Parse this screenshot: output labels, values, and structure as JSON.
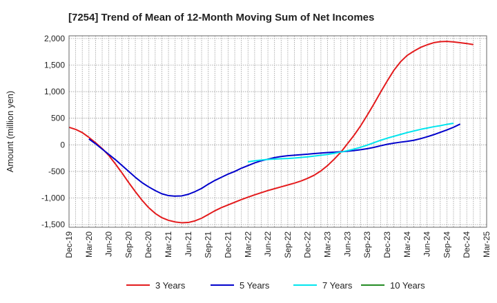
{
  "chart_data": {
    "type": "line",
    "title": "[7254]  Trend of Mean of 12-Month Moving Sum of Net Incomes",
    "ylabel": "Amount (million yen)",
    "xlabel": "",
    "ylim": [
      -1550,
      2050
    ],
    "yticks": [
      2000,
      1500,
      1000,
      500,
      0,
      -500,
      -1000,
      -1500
    ],
    "ytick_labels": [
      "2,000",
      "1,500",
      "1,000",
      "500",
      "0",
      "-500",
      "-1,000",
      "-1,500"
    ],
    "x_start": "Dec-19",
    "x_end": "Mar-25",
    "x_tick_labels": [
      "Dec-19",
      "Mar-20",
      "Jun-20",
      "Sep-20",
      "Dec-20",
      "Mar-21",
      "Jun-21",
      "Sep-21",
      "Dec-21",
      "Mar-22",
      "Jun-22",
      "Sep-22",
      "Dec-22",
      "Mar-23",
      "Jun-23",
      "Sep-23",
      "Dec-23",
      "Mar-24",
      "Jun-24",
      "Sep-24",
      "Dec-24",
      "Mar-25"
    ],
    "grid": true,
    "legend_position": "bottom",
    "series": [
      {
        "name": "3 Years",
        "color": "#e31a1c",
        "start": "Dec-19",
        "values": [
          330,
          290,
          230,
          140,
          40,
          -70,
          -200,
          -360,
          -530,
          -710,
          -880,
          -1040,
          -1180,
          -1290,
          -1370,
          -1420,
          -1450,
          -1465,
          -1460,
          -1430,
          -1380,
          -1310,
          -1240,
          -1180,
          -1130,
          -1080,
          -1030,
          -985,
          -940,
          -900,
          -860,
          -825,
          -790,
          -755,
          -720,
          -680,
          -630,
          -570,
          -490,
          -390,
          -270,
          -140,
          20,
          180,
          360,
          560,
          770,
          990,
          1200,
          1400,
          1560,
          1680,
          1760,
          1830,
          1880,
          1920,
          1940,
          1945,
          1935,
          1920,
          1905,
          1885
        ]
      },
      {
        "name": "5 Years",
        "color": "#0000cc",
        "start": "Mar-20",
        "values": [
          110,
          20,
          -80,
          -180,
          -280,
          -390,
          -500,
          -610,
          -710,
          -790,
          -860,
          -920,
          -955,
          -965,
          -960,
          -930,
          -880,
          -820,
          -740,
          -670,
          -610,
          -550,
          -500,
          -440,
          -390,
          -340,
          -300,
          -270,
          -240,
          -220,
          -205,
          -195,
          -185,
          -175,
          -165,
          -155,
          -145,
          -138,
          -130,
          -120,
          -108,
          -92,
          -72,
          -48,
          -18,
          10,
          32,
          50,
          65,
          85,
          115,
          150,
          190,
          235,
          280,
          330,
          390
        ]
      },
      {
        "name": "7 Years",
        "color": "#00e5ee",
        "start": "Mar-22",
        "values": [
          -320,
          -300,
          -285,
          -275,
          -268,
          -262,
          -256,
          -248,
          -238,
          -226,
          -212,
          -196,
          -180,
          -160,
          -136,
          -110,
          -80,
          -45,
          -5,
          40,
          85,
          125,
          160,
          195,
          230,
          260,
          290,
          315,
          340,
          360,
          385,
          405
        ]
      },
      {
        "name": "10 Years",
        "color": "#228b22",
        "start": "Dec-24",
        "values": []
      }
    ]
  }
}
